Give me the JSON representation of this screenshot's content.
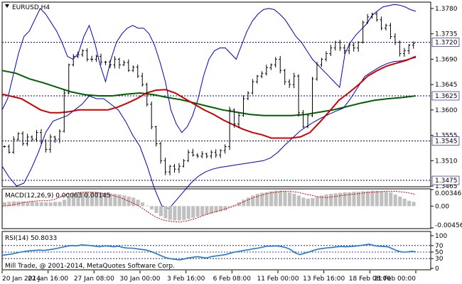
{
  "header": {
    "symbol_label": "EURUSD,H4",
    "menu_icon": "triangle-down-icon"
  },
  "colors": {
    "axis": "#000000",
    "grid": "#c0c0c0",
    "level_line": "#000080",
    "price_bars": "#000000",
    "bollinger": "#0000c0",
    "ma_fast": "#d00000",
    "ma_slow": "#006000",
    "macd_hist": "#c0c0c0",
    "macd_signal": "#d00000",
    "rsi_line": "#1e78d0",
    "label_bg": "#ffffff"
  },
  "chart_data": [
    {
      "type": "candlestick",
      "title": "EURUSD,H4",
      "ylim": [
        1.3465,
        1.379
      ],
      "y_ticks": [
        1.378,
        1.3735,
        1.369,
        1.3645,
        1.36,
        1.3555,
        1.351,
        1.3465
      ],
      "price_labels": [
        {
          "value": 1.372,
          "text": "1.3720"
        },
        {
          "value": 1.3625,
          "text": "1.3625"
        },
        {
          "value": 1.3545,
          "text": "1.3545"
        },
        {
          "value": 1.3475,
          "text": "1.3475"
        }
      ],
      "x_labels": [
        "20 Jan 2014",
        "22 Jan 16:00",
        "27 Jan 08:00",
        "30 Jan 00:00",
        "3 Feb 16:00",
        "6 Feb 08:00",
        "11 Feb 00:00",
        "13 Feb 16:00",
        "18 Feb 08:00",
        "21 Feb 00:00"
      ],
      "close": [
        1.3535,
        1.3525,
        1.3548,
        1.3558,
        1.354,
        1.3552,
        1.3548,
        1.356,
        1.3545,
        1.353,
        1.3552,
        1.3548,
        1.3562,
        1.363,
        1.368,
        1.3695,
        1.3698,
        1.3705,
        1.369,
        1.369,
        1.3695,
        1.3685,
        1.3685,
        1.368,
        1.369,
        1.368,
        1.3684,
        1.367,
        1.3676,
        1.366,
        1.3645,
        1.361,
        1.357,
        1.354,
        1.351,
        1.349,
        1.35,
        1.3495,
        1.35,
        1.351,
        1.3525,
        1.352,
        1.3518,
        1.3522,
        1.3518,
        1.3525,
        1.352,
        1.3528,
        1.3535,
        1.36,
        1.3575,
        1.359,
        1.362,
        1.363,
        1.365,
        1.366,
        1.3665,
        1.3675,
        1.368,
        1.369,
        1.367,
        1.365,
        1.3645,
        1.366,
        1.3595,
        1.357,
        1.359,
        1.3655,
        1.368,
        1.369,
        1.37,
        1.371,
        1.372,
        1.371,
        1.3705,
        1.3715,
        1.371,
        1.372,
        1.3755,
        1.3765,
        1.377,
        1.376,
        1.3745,
        1.375,
        1.373,
        1.372,
        1.37,
        1.3705,
        1.3715,
        1.3718
      ],
      "bollinger_upper": [
        1.36,
        1.362,
        1.366,
        1.37,
        1.373,
        1.374,
        1.376,
        1.378,
        1.377,
        1.3755,
        1.374,
        1.372,
        1.3695,
        1.369,
        1.37,
        1.373,
        1.375,
        1.372,
        1.368,
        1.365,
        1.369,
        1.372,
        1.3735,
        1.3745,
        1.375,
        1.3745,
        1.3745,
        1.3735,
        1.3715,
        1.3685,
        1.365,
        1.36,
        1.3575,
        1.356,
        1.357,
        1.359,
        1.362,
        1.366,
        1.369,
        1.3705,
        1.371,
        1.371,
        1.37,
        1.369,
        1.3715,
        1.374,
        1.3758,
        1.377,
        1.3778,
        1.378,
        1.3778,
        1.377,
        1.376,
        1.3745,
        1.373,
        1.372,
        1.3705,
        1.369,
        1.368,
        1.367,
        1.366,
        1.365,
        1.364,
        1.37,
        1.372,
        1.3733,
        1.3743,
        1.3753,
        1.3768,
        1.3776,
        1.3783,
        1.3785,
        1.3787,
        1.3786,
        1.3783,
        1.3778,
        1.3775
      ],
      "bollinger_lower": [
        1.35,
        1.348,
        1.3465,
        1.347,
        1.3495,
        1.3525,
        1.356,
        1.358,
        1.3585,
        1.359,
        1.36,
        1.361,
        1.3625,
        1.362,
        1.362,
        1.361,
        1.36,
        1.358,
        1.3555,
        1.3535,
        1.35,
        1.346,
        1.343,
        1.3425,
        1.344,
        1.3455,
        1.347,
        1.3482,
        1.349,
        1.3495,
        1.3498,
        1.35,
        1.3502,
        1.3504,
        1.3506,
        1.3508,
        1.351,
        1.3515,
        1.3525,
        1.3538,
        1.355,
        1.3562,
        1.3571,
        1.3579,
        1.3586,
        1.3592,
        1.3598,
        1.3603,
        1.362,
        1.364,
        1.366,
        1.3668,
        1.3676,
        1.3682,
        1.3686,
        1.3687,
        1.369,
        1.3693
      ],
      "ma_fast": [
        1.3628,
        1.3624,
        1.362,
        1.361,
        1.36,
        1.3595,
        1.3595,
        1.3597,
        1.36,
        1.36,
        1.36,
        1.36,
        1.3605,
        1.3612,
        1.362,
        1.363,
        1.3635,
        1.3636,
        1.363,
        1.362,
        1.361,
        1.36,
        1.3592,
        1.3582,
        1.3574,
        1.3566,
        1.356,
        1.3556,
        1.355,
        1.355,
        1.355,
        1.3552,
        1.356,
        1.3578,
        1.3597,
        1.3617,
        1.363,
        1.3644,
        1.366,
        1.367,
        1.3678,
        1.3683,
        1.3688,
        1.3695
      ],
      "ma_slow": [
        1.367,
        1.3665,
        1.3655,
        1.3648,
        1.364,
        1.3632,
        1.3627,
        1.3625,
        1.3625,
        1.3628,
        1.363,
        1.3627,
        1.3622,
        1.3618,
        1.3612,
        1.3606,
        1.36,
        1.3596,
        1.3592,
        1.359,
        1.359,
        1.359,
        1.3592,
        1.3596,
        1.36,
        1.3606,
        1.3612,
        1.3617,
        1.362,
        1.3622,
        1.3625
      ]
    },
    {
      "type": "bar",
      "title": "MACD(12,26,9) 0.00063 0.00145",
      "ylim": [
        -0.00456,
        0.00346
      ],
      "y_ticks": [
        {
          "value": 0.00346,
          "text": "0.00346"
        },
        {
          "value": 0.0,
          "text": "0.00"
        },
        {
          "value": -0.00456,
          "text": "-0.00456"
        }
      ],
      "histogram": [
        0.00078,
        0.00089,
        0.001,
        0.001,
        0.001,
        0.00089,
        0.001,
        0.00089,
        0.00078,
        0.00078,
        0.00078,
        0.00089,
        0.00089,
        0.00133,
        0.002,
        0.00256,
        0.00278,
        0.00289,
        0.003,
        0.003,
        0.003,
        0.00289,
        0.00278,
        0.00267,
        0.00256,
        0.00244,
        0.00222,
        0.002,
        0.00178,
        0.00133,
        0.00078,
        0.00011,
        -0.00067,
        -0.00144,
        -0.00211,
        -0.00256,
        -0.00289,
        -0.003,
        -0.003,
        -0.00289,
        -0.00267,
        -0.00244,
        -0.00222,
        -0.002,
        -0.00178,
        -0.00156,
        -0.00133,
        -0.00111,
        -0.00089,
        -0.00022,
        0.00022,
        0.00078,
        0.00133,
        0.00178,
        0.00222,
        0.00256,
        0.00278,
        0.00289,
        0.00311,
        0.00322,
        0.00322,
        0.00311,
        0.00289,
        0.00256,
        0.00222,
        0.00178,
        0.00156,
        0.00167,
        0.002,
        0.00222,
        0.00244,
        0.00256,
        0.00267,
        0.00278,
        0.00289,
        0.00289,
        0.003,
        0.003,
        0.00311,
        0.00311,
        0.00322,
        0.00322,
        0.00311,
        0.003,
        0.00289,
        0.00244,
        0.002,
        0.00156,
        0.00111,
        0.00089
      ],
      "signal": [
        0.0,
        0.00011,
        0.00044,
        0.00078,
        0.001,
        0.00111,
        0.00111,
        0.00133,
        0.002,
        0.00256,
        0.00278,
        0.00289,
        0.00289,
        0.00278,
        0.00256,
        0.00222,
        0.00178,
        0.00111,
        0.00044,
        -0.00044,
        -0.00156,
        -0.00244,
        -0.003,
        -0.00322,
        -0.00333,
        -0.00311,
        -0.00267,
        -0.00211,
        -0.00156,
        -0.00111,
        -0.00067,
        -0.00022,
        0.00044,
        0.00111,
        0.00178,
        0.00222,
        0.00267,
        0.00289,
        0.00311,
        0.00311,
        0.00289,
        0.00256,
        0.00222,
        0.00189,
        0.00178,
        0.002,
        0.00222,
        0.00244,
        0.00256,
        0.00278,
        0.00289,
        0.003,
        0.00311,
        0.00311,
        0.003,
        0.00278,
        0.00244
      ]
    },
    {
      "type": "line",
      "title": "RSI(14) 50.8033",
      "ylim": [
        0,
        100
      ],
      "y_ticks": [
        100,
        70,
        50,
        30,
        0
      ],
      "levels": [
        70,
        50,
        30
      ],
      "values": [
        40,
        42,
        44,
        47,
        50,
        52,
        54,
        55,
        56,
        55,
        57,
        59,
        62,
        65,
        68,
        70,
        69,
        72,
        71,
        70,
        68,
        66,
        69,
        68,
        66,
        68,
        64,
        62,
        62,
        60,
        58,
        56,
        52,
        46,
        40,
        34,
        30,
        28,
        26,
        28,
        32,
        34,
        36,
        34,
        32,
        36,
        38,
        40,
        42,
        46,
        50,
        52,
        55,
        57,
        60,
        62,
        65,
        68,
        68,
        69,
        67,
        64,
        58,
        48,
        42,
        46,
        50,
        55,
        59,
        61,
        63,
        64,
        66,
        67,
        66,
        67,
        68,
        70,
        72,
        74,
        70,
        68,
        67,
        66,
        60,
        54,
        50,
        50,
        52,
        51
      ],
      "footer": "Mill Trade, @ 2001-2014, MetaQuotes Software Corp."
    }
  ]
}
